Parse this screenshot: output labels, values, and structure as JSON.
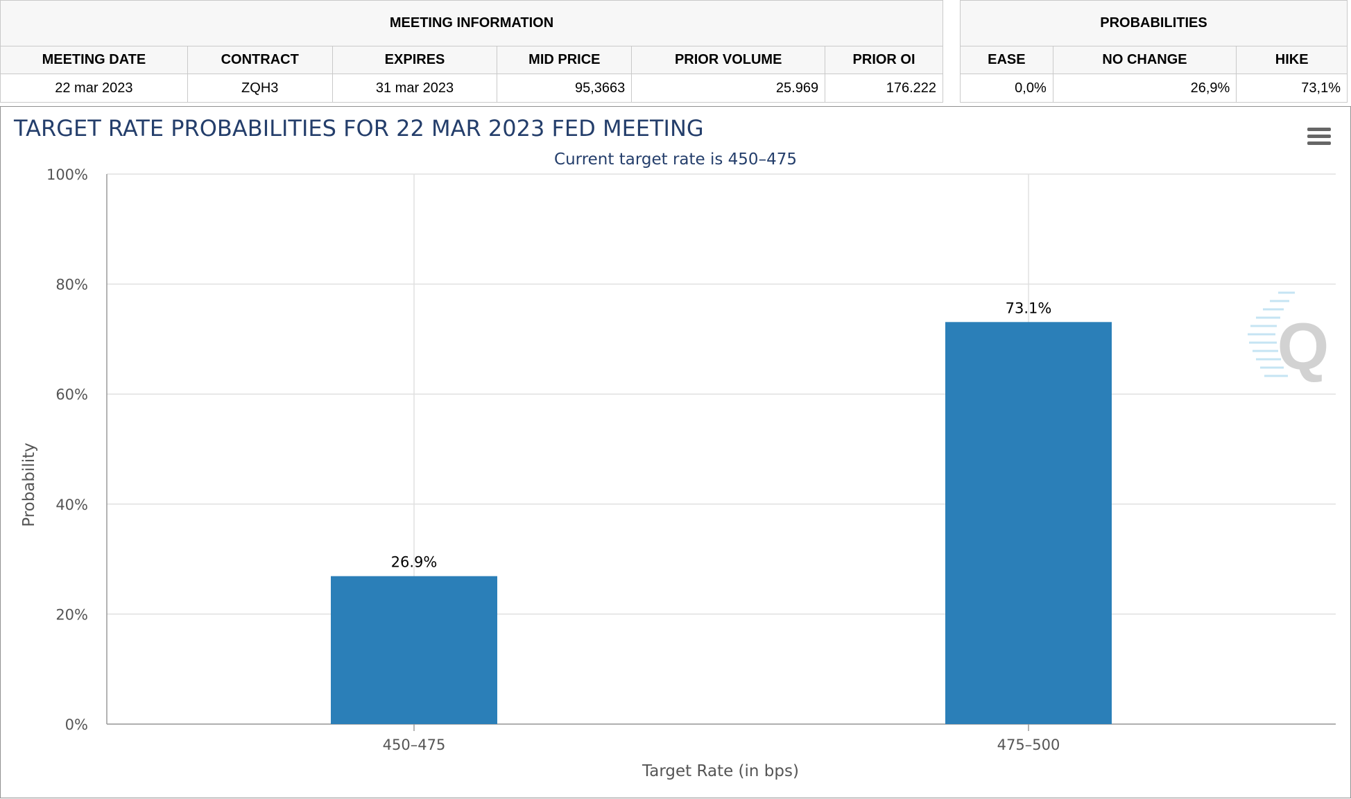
{
  "meeting_info": {
    "header": "MEETING INFORMATION",
    "columns": [
      "MEETING DATE",
      "CONTRACT",
      "EXPIRES",
      "MID PRICE",
      "PRIOR VOLUME",
      "PRIOR OI"
    ],
    "values": [
      "22 mar 2023",
      "ZQH3",
      "31 mar 2023",
      "95,3663",
      "25.969",
      "176.222"
    ]
  },
  "probabilities": {
    "header": "PROBABILITIES",
    "columns": [
      "EASE",
      "NO CHANGE",
      "HIKE"
    ],
    "values": [
      "0,0%",
      "26,9%",
      "73,1%"
    ]
  },
  "chart_data": {
    "type": "bar",
    "title": "TARGET RATE PROBABILITIES FOR 22 MAR 2023 FED MEETING",
    "subtitle": "Current target rate is 450–475",
    "xlabel": "Target Rate (in bps)",
    "ylabel": "Probability",
    "categories": [
      "450–475",
      "475–500"
    ],
    "values": [
      26.9,
      73.1
    ],
    "data_labels": [
      "26.9%",
      "73.1%"
    ],
    "ylim": [
      0,
      100
    ],
    "yticks": [
      0,
      20,
      40,
      60,
      80,
      100
    ],
    "ytick_labels": [
      "0%",
      "20%",
      "40%",
      "60%",
      "80%",
      "100%"
    ],
    "grid": true,
    "bar_color": "#2b7fb8",
    "title_color": "#243e6b",
    "watermark": "Q"
  },
  "menu": {
    "icon": "hamburger-menu-icon"
  }
}
